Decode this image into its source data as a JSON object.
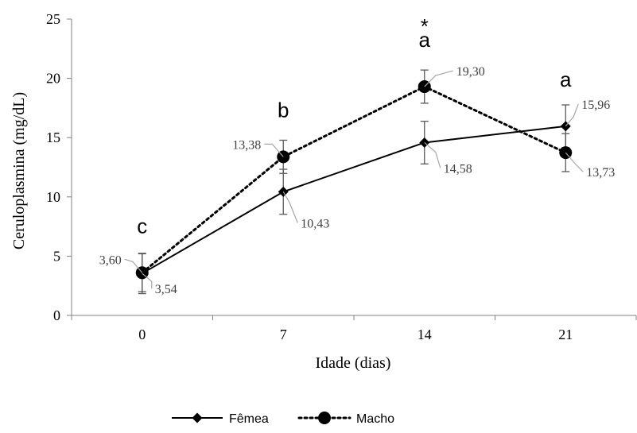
{
  "chart_data": {
    "type": "line",
    "title": "",
    "xlabel": "Idade (dias)",
    "ylabel": "Ceruloplasmina (mg/dL)",
    "categories": [
      "0",
      "7",
      "14",
      "21"
    ],
    "ylim": [
      0,
      25
    ],
    "yticks": [
      "0",
      "5",
      "10",
      "15",
      "20",
      "25"
    ],
    "grid": false,
    "legend_position": "bottom",
    "series": [
      {
        "name": "Fêmea",
        "values": [
          3.54,
          10.43,
          14.58,
          15.96
        ],
        "value_labels": [
          "3,54",
          "10,43",
          "14,58",
          "15,96"
        ],
        "error": [
          1.7,
          1.9,
          1.8,
          1.8
        ],
        "marker": "diamond",
        "line_style": "solid",
        "color": "#000000"
      },
      {
        "name": "Macho",
        "values": [
          3.6,
          13.38,
          19.3,
          13.73
        ],
        "value_labels": [
          "3,60",
          "13,38",
          "19,30",
          "13,73"
        ],
        "error": [
          1.6,
          1.4,
          1.4,
          1.6
        ],
        "marker": "circle",
        "line_style": "dotted",
        "color": "#000000"
      }
    ],
    "annotations": [
      {
        "category": "0",
        "text": "c"
      },
      {
        "category": "7",
        "text": "b"
      },
      {
        "category": "14",
        "text": "a"
      },
      {
        "category": "14",
        "text": "*"
      },
      {
        "category": "21",
        "text": "a"
      }
    ],
    "colors": {
      "axis": "#808080",
      "leader": "#a6a6a6",
      "label": "#404040",
      "errorbar": "#595959"
    }
  }
}
